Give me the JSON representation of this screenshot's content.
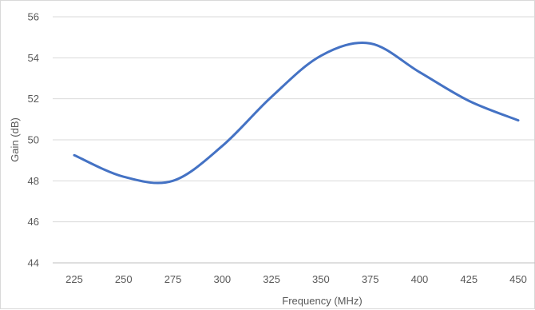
{
  "chart_data": {
    "type": "line",
    "title": "",
    "xlabel": "Frequency (MHz)",
    "ylabel": "Gain (dB)",
    "x": [
      225,
      250,
      275,
      300,
      325,
      350,
      375,
      400,
      425,
      450
    ],
    "series": [
      {
        "values": [
          49.25,
          48.2,
          48.0,
          49.7,
          52.1,
          54.1,
          54.7,
          53.3,
          51.9,
          50.95
        ]
      }
    ],
    "xlim": [
      225,
      450
    ],
    "ylim": [
      44,
      56
    ],
    "yticks": [
      44,
      46,
      48,
      50,
      52,
      54,
      56
    ],
    "xticks": [
      225,
      250,
      275,
      300,
      325,
      350,
      375,
      400,
      425,
      450
    ],
    "grid": true,
    "legend": "none",
    "line_color": "#4472C4"
  }
}
